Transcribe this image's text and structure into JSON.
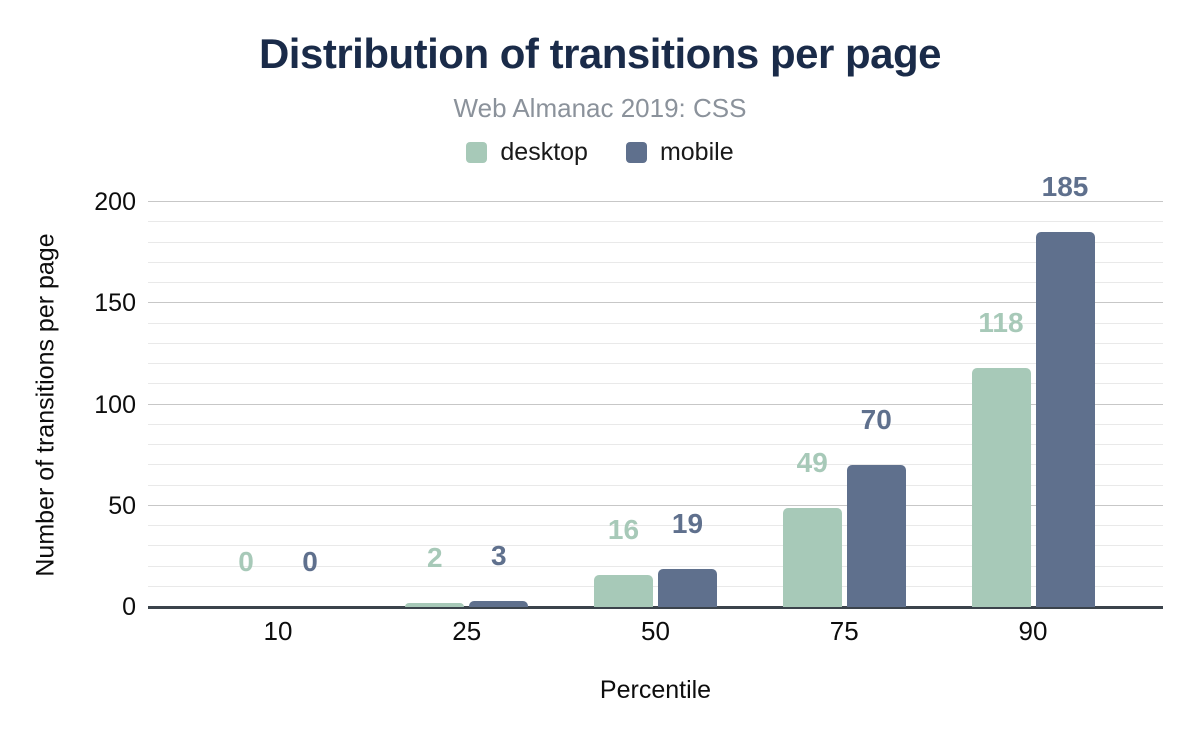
{
  "chart_data": {
    "type": "bar",
    "title": "Distribution of transitions per page",
    "subtitle": "Web Almanac 2019: CSS",
    "xlabel": "Percentile",
    "ylabel": "Number of transitions per page",
    "categories": [
      "10",
      "25",
      "50",
      "75",
      "90"
    ],
    "series": [
      {
        "name": "desktop",
        "color": "#a7c9b8",
        "values": [
          0,
          2,
          16,
          49,
          118
        ]
      },
      {
        "name": "mobile",
        "color": "#5f708d",
        "values": [
          0,
          3,
          19,
          70,
          185
        ]
      }
    ],
    "ylim": [
      0,
      200
    ],
    "y_ticks": [
      0,
      50,
      100,
      150,
      200
    ],
    "minor_grid_step": 10,
    "major_grid_step": 50,
    "grid": true,
    "legend_position": "top",
    "bar_labels_shown": true
  },
  "colors": {
    "title": "#1a2b49",
    "subtitle": "#8b929b",
    "axis_text": "#0d0d0d",
    "baseline": "#3b434b",
    "grid_minor": "#e9e9e9",
    "grid_major": "#c7c7c7",
    "background": "#ffffff"
  }
}
